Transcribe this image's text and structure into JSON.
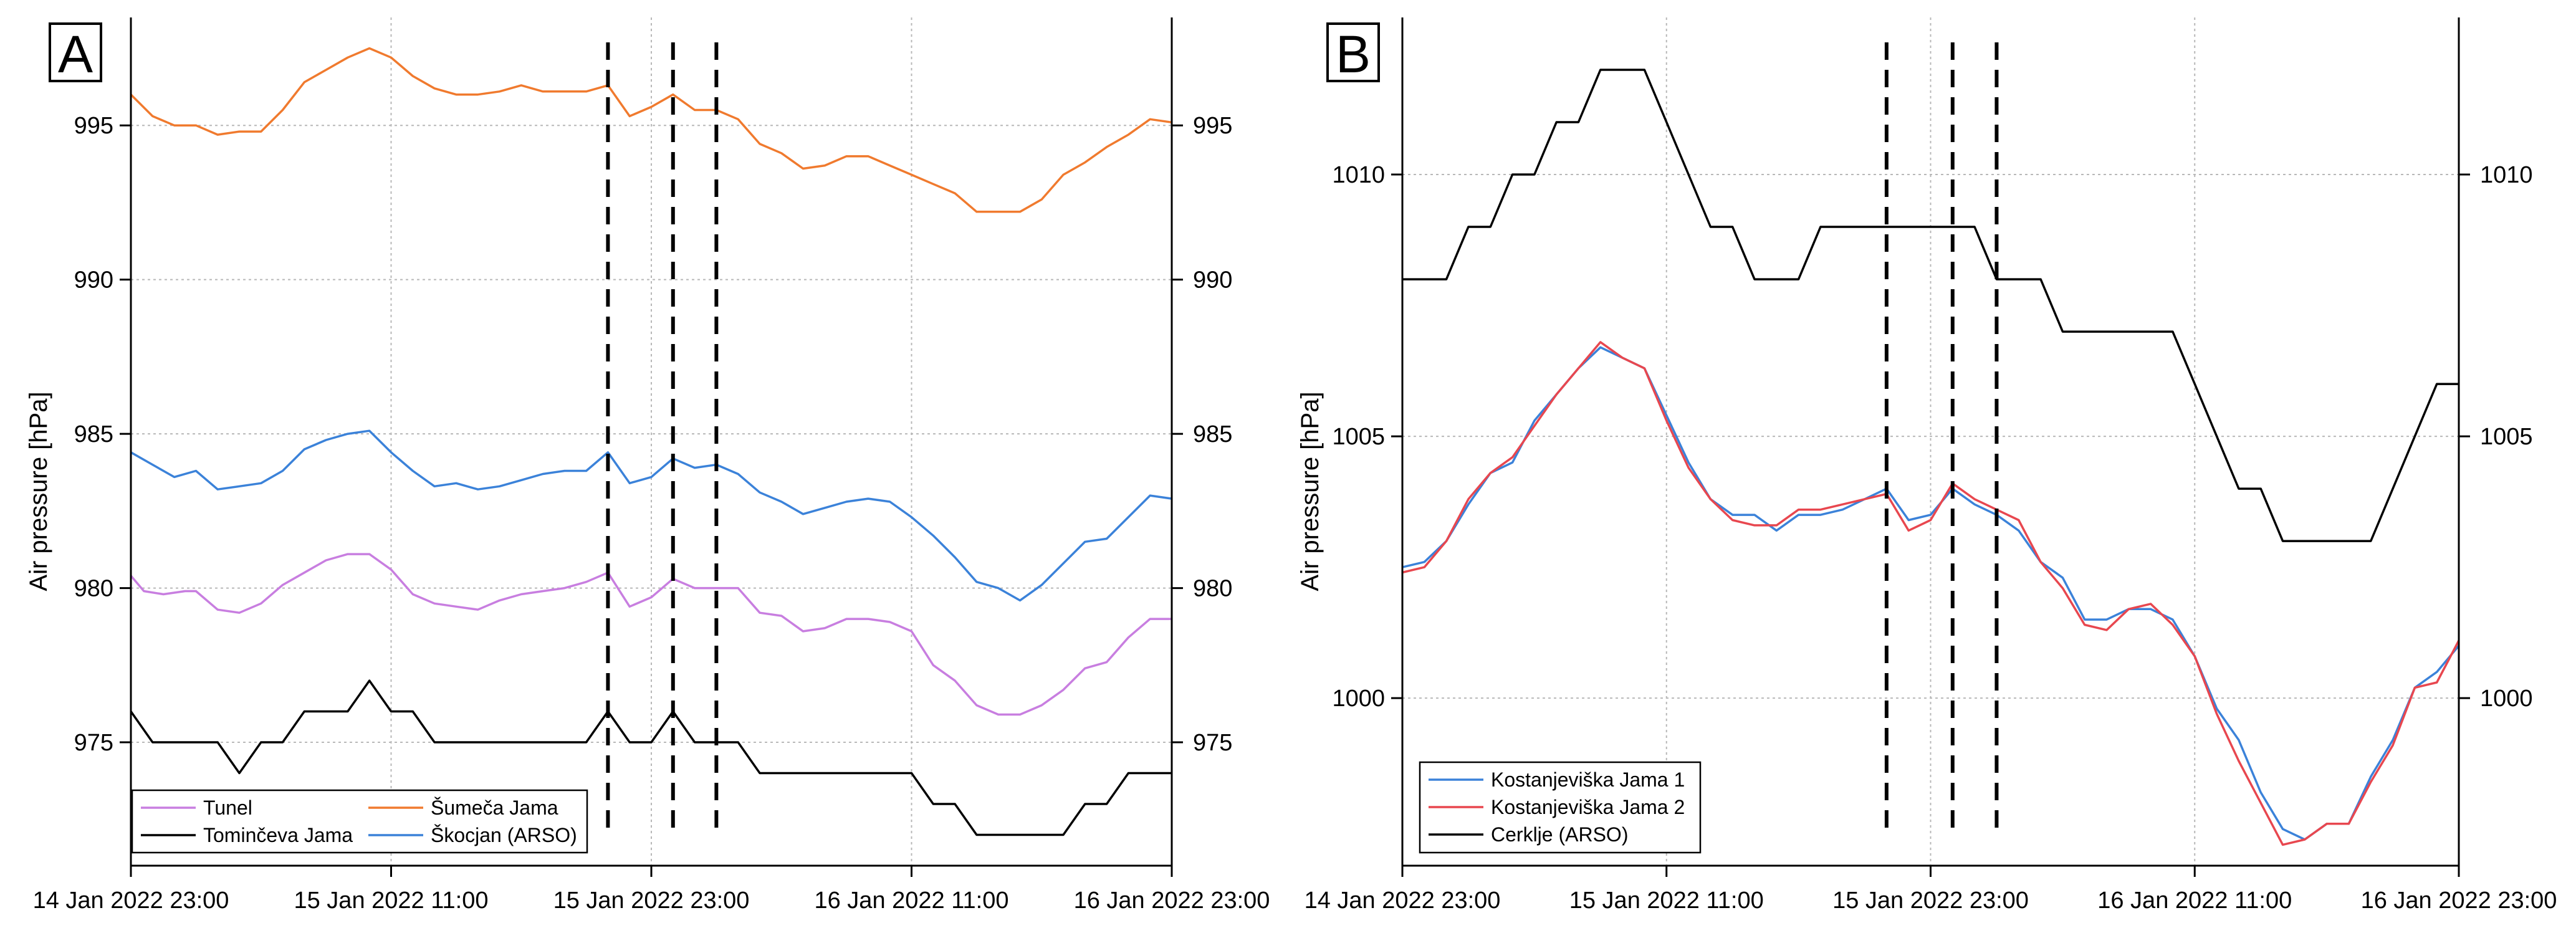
{
  "chart_data": [
    {
      "panel": "A",
      "type": "line",
      "ylabel": "Air pressure [hPa]",
      "xlabel": "",
      "x_unit": "hours since 14 Jan 2022 23:00",
      "xlim": [
        0,
        48
      ],
      "ylim": [
        971,
        998.5
      ],
      "x_ticks": [
        0,
        12,
        24,
        36,
        48
      ],
      "x_tick_labels": [
        "14 Jan 2022 23:00",
        "15 Jan 2022 11:00",
        "15 Jan 2022 23:00",
        "16 Jan 2022 11:00",
        "16 Jan 2022 23:00"
      ],
      "y_ticks": [
        975,
        980,
        985,
        990,
        995
      ],
      "y_tick_labels": [
        "975",
        "980",
        "985",
        "990",
        "995"
      ],
      "grid": true,
      "vlines": [
        22,
        25,
        27
      ],
      "legend_position": "bottom-left",
      "series": [
        {
          "name": "Tunel",
          "color": "#c87ee0",
          "x": [
            0,
            0.6,
            1.5,
            2.5,
            3,
            4,
            5,
            6,
            7,
            8,
            9,
            10,
            11,
            12,
            13,
            14,
            15,
            16,
            17,
            18,
            19,
            20,
            21,
            22,
            23,
            24,
            25,
            26,
            27,
            28,
            29,
            30,
            31,
            32,
            33,
            34,
            35,
            36,
            37,
            38,
            39,
            40,
            41,
            42,
            43,
            44,
            45,
            46,
            47,
            48
          ],
          "y": [
            980.4,
            979.9,
            979.8,
            979.9,
            979.9,
            979.3,
            979.2,
            979.5,
            980.1,
            980.5,
            980.9,
            981.1,
            981.1,
            980.6,
            979.8,
            979.5,
            979.4,
            979.3,
            979.6,
            979.8,
            979.9,
            980.0,
            980.2,
            980.5,
            979.4,
            979.7,
            980.3,
            980.0,
            980.0,
            980.0,
            979.2,
            979.1,
            978.6,
            978.7,
            979.0,
            979.0,
            978.9,
            978.6,
            977.5,
            977.0,
            976.2,
            975.9,
            975.9,
            976.2,
            976.7,
            977.4,
            977.6,
            978.4,
            979.0,
            979.0
          ]
        },
        {
          "name": "Šumeča Jama",
          "color": "#f07a2e",
          "x": [
            0,
            1,
            2,
            3,
            4,
            5,
            6,
            7,
            8,
            9,
            10,
            11,
            12,
            13,
            14,
            15,
            16,
            17,
            18,
            19,
            20,
            21,
            22,
            23,
            24,
            25,
            26,
            27,
            28,
            29,
            30,
            31,
            32,
            33,
            34,
            35,
            36,
            37,
            38,
            39,
            40,
            41,
            42,
            43,
            44,
            45,
            46,
            47,
            48
          ],
          "y": [
            996.0,
            995.3,
            995.0,
            995.0,
            994.7,
            994.8,
            994.8,
            995.5,
            996.4,
            996.8,
            997.2,
            997.5,
            997.2,
            996.6,
            996.2,
            996.0,
            996.0,
            996.1,
            996.3,
            996.1,
            996.1,
            996.1,
            996.3,
            995.3,
            995.6,
            996.0,
            995.5,
            995.5,
            995.2,
            994.4,
            994.1,
            993.6,
            993.7,
            994.0,
            994.0,
            993.7,
            993.4,
            993.1,
            992.8,
            992.2,
            992.2,
            992.2,
            992.6,
            993.4,
            993.8,
            994.3,
            994.7,
            995.2,
            995.1
          ]
        },
        {
          "name": "Tominčeva Jama",
          "color": "#000000",
          "x": [
            0,
            1,
            2,
            3,
            4,
            5,
            6,
            7,
            8,
            9,
            10,
            11,
            12,
            13,
            14,
            15,
            16,
            17,
            18,
            19,
            20,
            21,
            22,
            23,
            24,
            25,
            26,
            27,
            28,
            29,
            30,
            31,
            32,
            33,
            34,
            35,
            36,
            37,
            38,
            39,
            40,
            41,
            42,
            43,
            44,
            45,
            46,
            47,
            48
          ],
          "y": [
            976,
            975,
            975,
            975,
            975,
            974,
            975,
            975,
            976,
            976,
            976,
            977,
            976,
            976,
            975,
            975,
            975,
            975,
            975,
            975,
            975,
            975,
            976,
            975,
            975,
            976,
            975,
            975,
            975,
            974,
            974,
            974,
            974,
            974,
            974,
            974,
            974,
            973,
            973,
            972,
            972,
            972,
            972,
            972,
            973,
            973,
            974,
            974,
            974
          ]
        },
        {
          "name": "Škocjan (ARSO)",
          "color": "#3b82d9",
          "x": [
            0,
            1,
            2,
            3,
            4,
            5,
            6,
            7,
            8,
            9,
            10,
            11,
            12,
            13,
            14,
            15,
            16,
            17,
            18,
            19,
            20,
            21,
            22,
            23,
            24,
            25,
            26,
            27,
            28,
            29,
            30,
            31,
            32,
            33,
            34,
            35,
            36,
            37,
            38,
            39,
            40,
            41,
            42,
            43,
            44,
            45,
            46,
            47,
            48
          ],
          "y": [
            984.4,
            984.0,
            983.6,
            983.8,
            983.2,
            983.3,
            983.4,
            983.8,
            984.5,
            984.8,
            985.0,
            985.1,
            984.4,
            983.8,
            983.3,
            983.4,
            983.2,
            983.3,
            983.5,
            983.7,
            983.8,
            983.8,
            984.4,
            983.4,
            983.6,
            984.2,
            983.9,
            984.0,
            983.7,
            983.1,
            982.8,
            982.4,
            982.6,
            982.8,
            982.9,
            982.8,
            982.3,
            981.7,
            981.0,
            980.2,
            980.0,
            979.6,
            980.1,
            980.8,
            981.5,
            981.6,
            982.3,
            983.0,
            982.9
          ]
        }
      ]
    },
    {
      "panel": "B",
      "type": "line",
      "ylabel": "Air pressure [hPa]",
      "xlabel": "",
      "x_unit": "hours since 14 Jan 2022 23:00",
      "xlim": [
        0,
        48
      ],
      "ylim": [
        996.8,
        1013
      ],
      "x_ticks": [
        0,
        12,
        24,
        36,
        48
      ],
      "x_tick_labels": [
        "14 Jan 2022 23:00",
        "15 Jan 2022 11:00",
        "15 Jan 2022 23:00",
        "16 Jan 2022 11:00",
        "16 Jan 2022 23:00"
      ],
      "y_ticks": [
        1000,
        1005,
        1010
      ],
      "y_tick_labels": [
        "1000",
        "1005",
        "1010"
      ],
      "grid": true,
      "vlines": [
        22,
        25,
        27
      ],
      "legend_position": "bottom-left",
      "series": [
        {
          "name": "Kostanjeviška Jama 1",
          "color": "#3b82d9",
          "x": [
            0,
            1,
            2,
            3,
            4,
            5,
            6,
            7,
            8,
            9,
            10,
            11,
            12,
            13,
            14,
            15,
            16,
            17,
            18,
            19,
            20,
            21,
            22,
            23,
            24,
            25,
            26,
            27,
            28,
            29,
            30,
            31,
            32,
            33,
            34,
            35,
            36,
            37,
            38,
            39,
            40,
            41,
            42,
            43,
            44,
            45,
            46,
            47,
            48
          ],
          "y": [
            1002.5,
            1002.6,
            1003.0,
            1003.7,
            1004.3,
            1004.5,
            1005.3,
            1005.8,
            1006.3,
            1006.7,
            1006.5,
            1006.3,
            1005.4,
            1004.5,
            1003.8,
            1003.5,
            1003.5,
            1003.2,
            1003.5,
            1003.5,
            1003.6,
            1003.8,
            1004.0,
            1003.4,
            1003.5,
            1004.0,
            1003.7,
            1003.5,
            1003.2,
            1002.6,
            1002.3,
            1001.5,
            1001.5,
            1001.7,
            1001.7,
            1001.5,
            1000.8,
            999.8,
            999.2,
            998.2,
            997.5,
            997.3,
            997.6,
            997.6,
            998.5,
            999.2,
            1000.2,
            1000.5,
            1001.0
          ]
        },
        {
          "name": "Kostanjeviška Jama 2",
          "color": "#e8474f",
          "x": [
            0,
            1,
            2,
            3,
            4,
            5,
            6,
            7,
            8,
            9,
            10,
            11,
            12,
            13,
            14,
            15,
            16,
            17,
            18,
            19,
            20,
            21,
            22,
            23,
            24,
            25,
            26,
            27,
            28,
            29,
            30,
            31,
            32,
            33,
            34,
            35,
            36,
            37,
            38,
            39,
            40,
            41,
            42,
            43,
            44,
            45,
            46,
            47,
            48
          ],
          "y": [
            1002.4,
            1002.5,
            1003.0,
            1003.8,
            1004.3,
            1004.6,
            1005.2,
            1005.8,
            1006.3,
            1006.8,
            1006.5,
            1006.3,
            1005.3,
            1004.4,
            1003.8,
            1003.4,
            1003.3,
            1003.3,
            1003.6,
            1003.6,
            1003.7,
            1003.8,
            1003.9,
            1003.2,
            1003.4,
            1004.1,
            1003.8,
            1003.6,
            1003.4,
            1002.6,
            1002.1,
            1001.4,
            1001.3,
            1001.7,
            1001.8,
            1001.4,
            1000.8,
            999.7,
            998.8,
            998.0,
            997.2,
            997.3,
            997.6,
            997.6,
            998.4,
            999.1,
            1000.2,
            1000.3,
            1001.1
          ]
        },
        {
          "name": "Cerklje (ARSO)",
          "color": "#000000",
          "x": [
            0,
            1,
            2,
            3,
            4,
            5,
            6,
            7,
            8,
            9,
            10,
            11,
            12,
            13,
            14,
            15,
            16,
            17,
            18,
            19,
            20,
            21,
            22,
            23,
            24,
            25,
            26,
            27,
            28,
            29,
            30,
            31,
            32,
            33,
            34,
            35,
            36,
            37,
            38,
            39,
            40,
            41,
            42,
            43,
            44,
            45,
            46,
            47,
            48
          ],
          "y": [
            1008,
            1008,
            1008,
            1009,
            1009,
            1010,
            1010,
            1011,
            1011,
            1012,
            1012,
            1012,
            1011,
            1010,
            1009,
            1009,
            1008,
            1008,
            1008,
            1009,
            1009,
            1009,
            1009,
            1009,
            1009,
            1009,
            1009,
            1008,
            1008,
            1008,
            1007,
            1007,
            1007,
            1007,
            1007,
            1007,
            1006,
            1005,
            1004,
            1004,
            1003,
            1003,
            1003,
            1003,
            1003,
            1004,
            1005,
            1006,
            1006
          ]
        }
      ]
    }
  ]
}
